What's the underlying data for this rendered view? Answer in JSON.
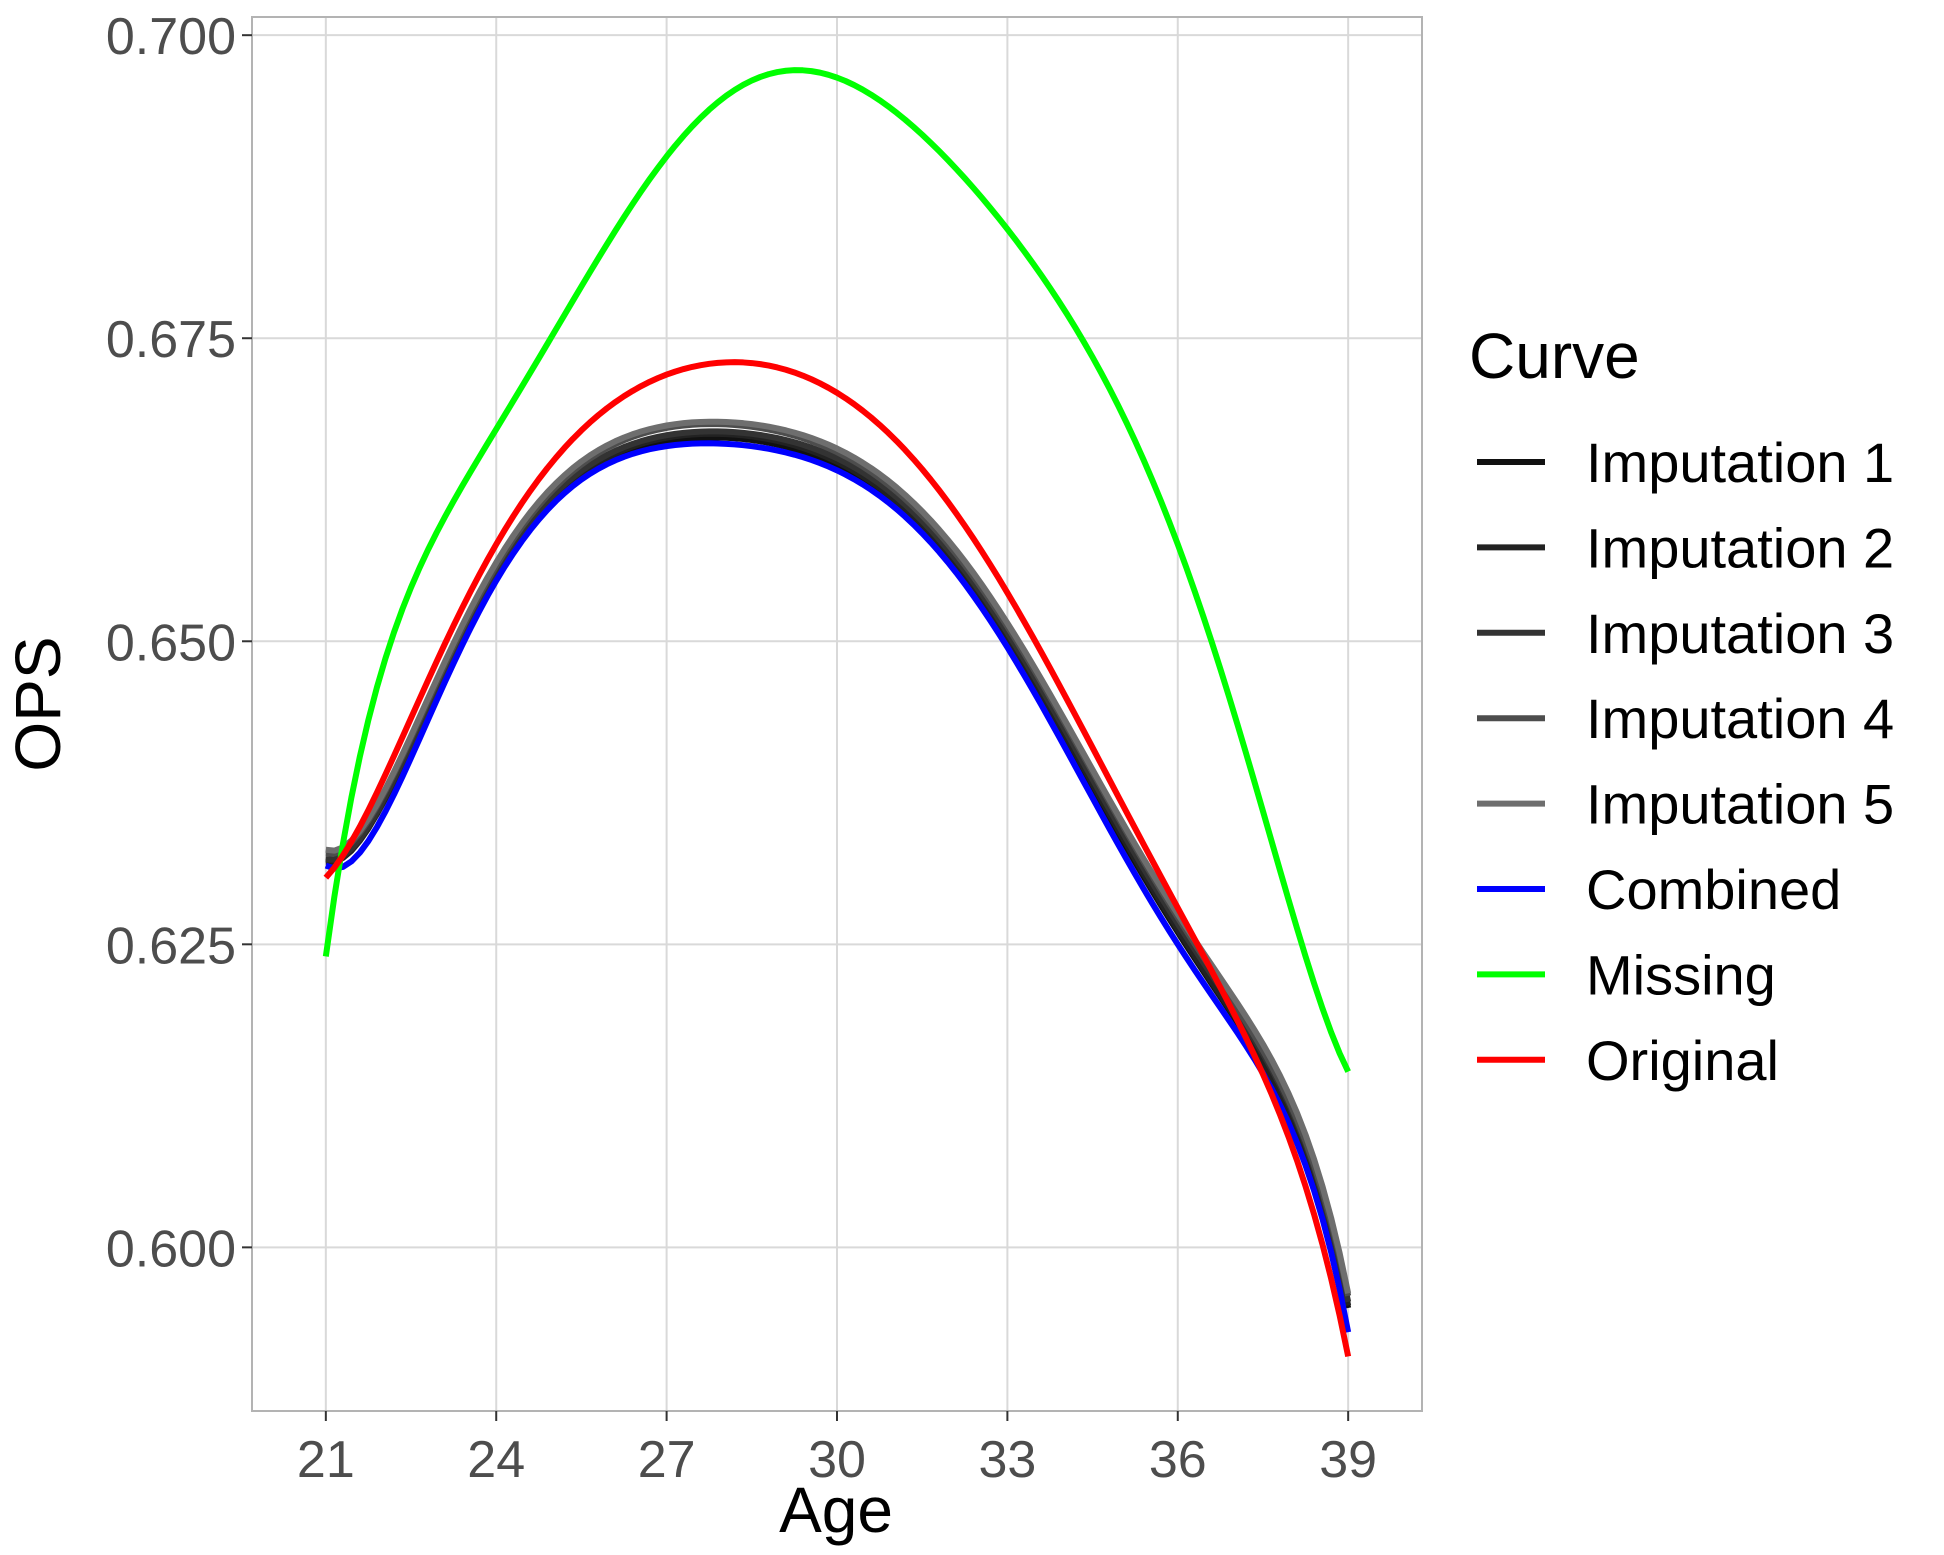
{
  "chart_data": {
    "type": "line",
    "xlabel": "Age",
    "ylabel": "OPS",
    "xlim": [
      19.7,
      40.3
    ],
    "ylim": [
      0.5865,
      0.7015
    ],
    "x_ticks": [
      21,
      24,
      27,
      30,
      33,
      36,
      39
    ],
    "y_ticks": [
      0.6,
      0.625,
      0.65,
      0.675,
      0.7
    ],
    "y_tick_labels": [
      "0.600",
      "0.625",
      "0.650",
      "0.675",
      "0.700"
    ],
    "grid": true,
    "legend": {
      "title": "Curve",
      "position": "right"
    },
    "series": [
      {
        "name": "Imputation 1",
        "color": "#111111",
        "x": [
          21,
          24,
          27,
          28,
          30,
          33,
          36,
          39
        ],
        "y": [
          0.632,
          0.6553,
          0.6665,
          0.6668,
          0.6645,
          0.65,
          0.626,
          0.595
        ]
      },
      {
        "name": "Imputation 2",
        "color": "#222222",
        "x": [
          21,
          24,
          27,
          28,
          30,
          33,
          36,
          39
        ],
        "y": [
          0.6318,
          0.6555,
          0.6668,
          0.6671,
          0.6648,
          0.6503,
          0.6262,
          0.5952
        ]
      },
      {
        "name": "Imputation 3",
        "color": "#333333",
        "x": [
          21,
          24,
          27,
          28,
          30,
          33,
          36,
          39
        ],
        "y": [
          0.632,
          0.6558,
          0.667,
          0.6673,
          0.6651,
          0.6507,
          0.6267,
          0.5955
        ]
      },
      {
        "name": "Imputation 4",
        "color": "#4d4d4d",
        "x": [
          21,
          24,
          27,
          28,
          30,
          33,
          36,
          39
        ],
        "y": [
          0.6325,
          0.6562,
          0.6676,
          0.6679,
          0.6656,
          0.6512,
          0.6272,
          0.596
        ]
      },
      {
        "name": "Imputation 5",
        "color": "#6e6e6e",
        "x": [
          21,
          24,
          27,
          28,
          30,
          33,
          36,
          39
        ],
        "y": [
          0.6328,
          0.6565,
          0.6678,
          0.6681,
          0.6659,
          0.6515,
          0.6275,
          0.5962
        ]
      },
      {
        "name": "Combined",
        "color": "#0000ff",
        "x": [
          21,
          24,
          27,
          28,
          30,
          33,
          36,
          39
        ],
        "y": [
          0.6315,
          0.655,
          0.6661,
          0.6663,
          0.6641,
          0.6495,
          0.625,
          0.593
        ]
      },
      {
        "name": "Missing",
        "color": "#00ff00",
        "x": [
          21,
          24,
          27,
          29,
          30,
          33,
          36,
          39
        ],
        "y": [
          0.624,
          0.6675,
          0.69,
          0.697,
          0.6965,
          0.684,
          0.658,
          0.6145
        ]
      },
      {
        "name": "Original",
        "color": "#ff0000",
        "x": [
          21,
          24,
          27,
          28,
          30,
          33,
          36,
          39
        ],
        "y": [
          0.6305,
          0.658,
          0.672,
          0.673,
          0.6705,
          0.654,
          0.628,
          0.591
        ]
      }
    ]
  }
}
